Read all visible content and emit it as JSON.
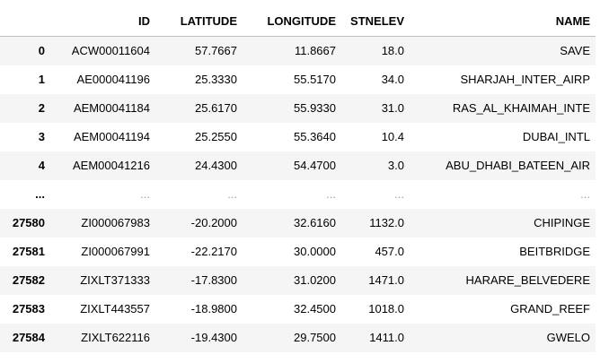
{
  "table": {
    "columns": [
      "",
      "ID",
      "LATITUDE",
      "LONGITUDE",
      "STNELEV",
      "NAME"
    ],
    "rows": [
      {
        "index": "0",
        "id": "ACW00011604",
        "latitude": "57.7667",
        "longitude": "11.8667",
        "stnelev": "18.0",
        "name": "SAVE"
      },
      {
        "index": "1",
        "id": "AE000041196",
        "latitude": "25.3330",
        "longitude": "55.5170",
        "stnelev": "34.0",
        "name": "SHARJAH_INTER_AIRP"
      },
      {
        "index": "2",
        "id": "AEM00041184",
        "latitude": "25.6170",
        "longitude": "55.9330",
        "stnelev": "31.0",
        "name": "RAS_AL_KHAIMAH_INTE"
      },
      {
        "index": "3",
        "id": "AEM00041194",
        "latitude": "25.2550",
        "longitude": "55.3640",
        "stnelev": "10.4",
        "name": "DUBAI_INTL"
      },
      {
        "index": "4",
        "id": "AEM00041216",
        "latitude": "24.4300",
        "longitude": "54.4700",
        "stnelev": "3.0",
        "name": "ABU_DHABI_BATEEN_AIR"
      },
      {
        "index": "...",
        "id": "...",
        "latitude": "...",
        "longitude": "...",
        "stnelev": "...",
        "name": "..."
      },
      {
        "index": "27580",
        "id": "ZI000067983",
        "latitude": "-20.2000",
        "longitude": "32.6160",
        "stnelev": "1132.0",
        "name": "CHIPINGE"
      },
      {
        "index": "27581",
        "id": "ZI000067991",
        "latitude": "-22.2170",
        "longitude": "30.0000",
        "stnelev": "457.0",
        "name": "BEITBRIDGE"
      },
      {
        "index": "27582",
        "id": "ZIXLT371333",
        "latitude": "-17.8300",
        "longitude": "31.0200",
        "stnelev": "1471.0",
        "name": "HARARE_BELVEDERE"
      },
      {
        "index": "27583",
        "id": "ZIXLT443557",
        "latitude": "-18.9800",
        "longitude": "32.4500",
        "stnelev": "1018.0",
        "name": "GRAND_REEF"
      },
      {
        "index": "27584",
        "id": "ZIXLT622116",
        "latitude": "-19.4300",
        "longitude": "29.7500",
        "stnelev": "1411.0",
        "name": "GWELO"
      }
    ]
  }
}
